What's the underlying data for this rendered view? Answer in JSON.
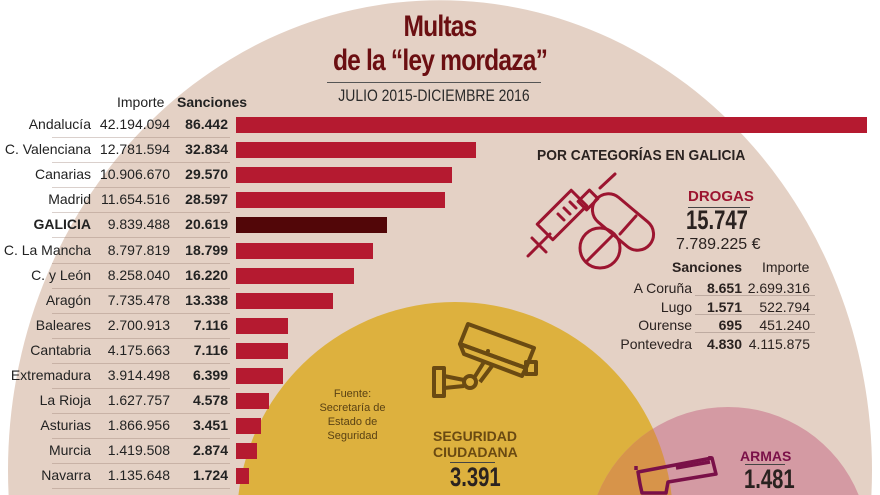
{
  "header": {
    "title_line1": "Multas",
    "title_line2": "de la “ley mordaza”",
    "subtitle": "JULIO 2015-DICIEMBRE 2016"
  },
  "colors": {
    "bar": "#b51a30",
    "bar_highlight": "#520608",
    "background_circle": "#e4d1c5",
    "seguridad_circle": "#ddb13e",
    "armas_circle": "#d49aa3",
    "title": "#6b0f12"
  },
  "chart_data": {
    "type": "bar",
    "orientation": "horizontal",
    "title": "Multas de la “ley mordaza”",
    "subtitle": "JULIO 2015-DICIEMBRE 2016",
    "columns": {
      "importe": "Importe",
      "sanciones": "Sanciones"
    },
    "highlight": "GALICIA",
    "xlim": [
      0,
      86442
    ],
    "categories": [
      "Andalucía",
      "C. Valenciana",
      "Canarias",
      "Madrid",
      "GALICIA",
      "C. La Mancha",
      "C. y León",
      "Aragón",
      "Baleares",
      "Cantabria",
      "Extremadura",
      "La Rioja",
      "Asturias",
      "Murcia",
      "Navarra"
    ],
    "importe": [
      "42.194.094",
      "12.781.594",
      "10.906.670",
      "11.654.516",
      "9.839.488",
      "8.797.819",
      "8.258.040",
      "7.735.478",
      "2.700.913",
      "4.175.663",
      "3.914.498",
      "1.627.757",
      "1.866.956",
      "1.419.508",
      "1.135.648"
    ],
    "sanciones_label": [
      "86.442",
      "32.834",
      "29.570",
      "28.597",
      "20.619",
      "18.799",
      "16.220",
      "13.338",
      "7.116",
      "7.116",
      "6.399",
      "4.578",
      "3.451",
      "2.874",
      "1.724"
    ],
    "values": [
      86442,
      32834,
      29570,
      28597,
      20619,
      18799,
      16220,
      13338,
      7116,
      7116,
      6399,
      4578,
      3451,
      2874,
      1724
    ]
  },
  "galicia": {
    "title": "POR CATEGORÍAS EN GALICIA",
    "drogas": {
      "label": "DROGAS",
      "sanciones": "15.747",
      "importe": "7.789.225 €",
      "table_headers": {
        "sanciones": "Sanciones",
        "importe": "Importe"
      },
      "rows": [
        {
          "provincia": "A Coruña",
          "sanciones": "8.651",
          "importe": "2.699.316"
        },
        {
          "provincia": "Lugo",
          "sanciones": "1.571",
          "importe": "522.794"
        },
        {
          "provincia": "Ourense",
          "sanciones": "695",
          "importe": "451.240"
        },
        {
          "provincia": "Pontevedra",
          "sanciones": "4.830",
          "importe": "4.115.875"
        }
      ]
    },
    "seguridad": {
      "label_line1": "SEGURIDAD",
      "label_line2": "CIUDADANA",
      "sanciones": "3.391"
    },
    "armas": {
      "label": "ARMAS",
      "sanciones": "1.481"
    }
  },
  "source": {
    "line1": "Fuente:",
    "line2": "Secretaría de",
    "line3": "Estado de",
    "line4": "Seguridad"
  },
  "icons": {
    "drogas": "syringe-pills-icon",
    "seguridad": "security-camera-icon",
    "armas": "pistol-icon"
  }
}
